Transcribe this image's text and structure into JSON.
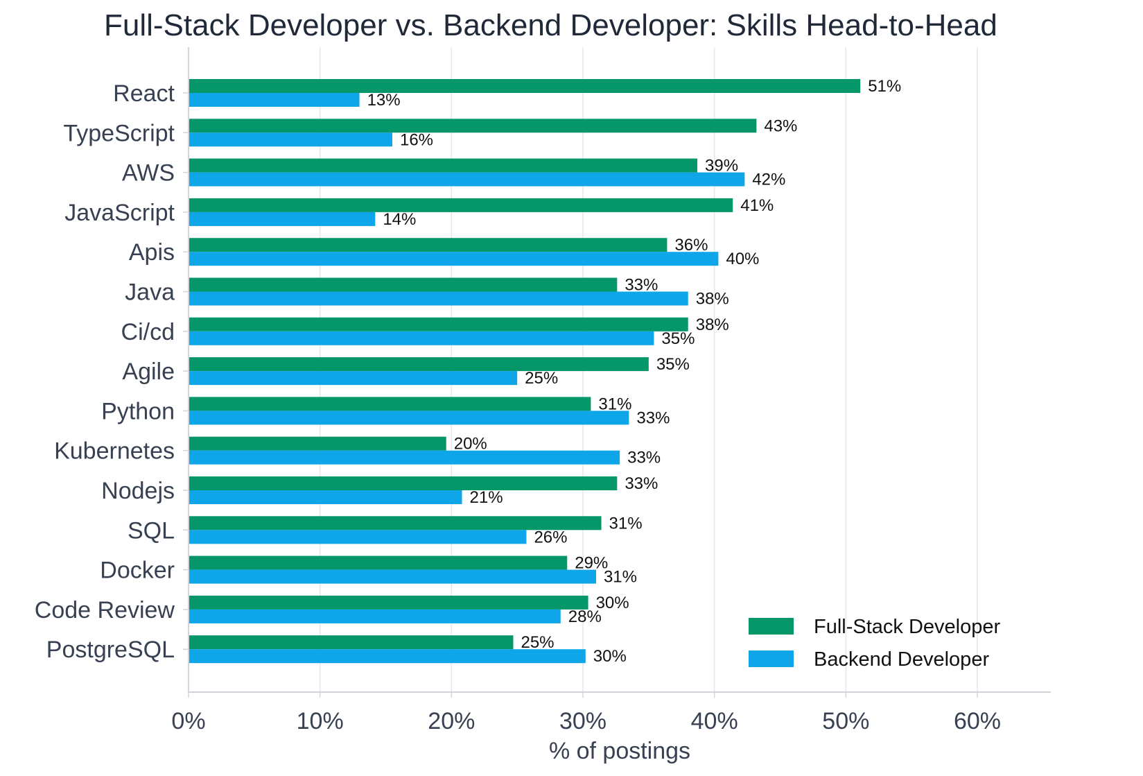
{
  "chart_data": {
    "type": "bar",
    "orientation": "horizontal",
    "title": "Full-Stack Developer vs. Backend Developer: Skills Head-to-Head",
    "xlabel": "% of postings",
    "ylabel": "",
    "xlim": [
      0,
      62.5
    ],
    "xticks": [
      "0%",
      "10%",
      "20%",
      "30%",
      "40%",
      "50%",
      "60%"
    ],
    "grid": "vertical",
    "legend_position": "bottom-right",
    "categories": [
      "React",
      "TypeScript",
      "AWS",
      "JavaScript",
      "Apis",
      "Java",
      "Ci/cd",
      "Agile",
      "Python",
      "Kubernetes",
      "Nodejs",
      "SQL",
      "Docker",
      "Code Review",
      "PostgreSQL"
    ],
    "series": [
      {
        "name": "Full-Stack Developer",
        "color": "#059669",
        "values": [
          51.1,
          43.2,
          38.7,
          41.4,
          36.4,
          32.6,
          38.0,
          35.0,
          30.6,
          19.6,
          32.6,
          31.4,
          28.8,
          30.4,
          24.7
        ],
        "labels": [
          "51%",
          "43%",
          "39%",
          "41%",
          "36%",
          "33%",
          "38%",
          "35%",
          "31%",
          "20%",
          "33%",
          "31%",
          "29%",
          "30%",
          "25%"
        ]
      },
      {
        "name": "Backend Developer",
        "color": "#0ea5e9",
        "values": [
          13.0,
          15.5,
          42.3,
          14.2,
          40.3,
          38.0,
          35.4,
          25.0,
          33.5,
          32.8,
          20.8,
          25.7,
          31.0,
          28.3,
          30.2
        ],
        "labels": [
          "13%",
          "16%",
          "42%",
          "14%",
          "40%",
          "38%",
          "35%",
          "25%",
          "33%",
          "33%",
          "21%",
          "26%",
          "31%",
          "28%",
          "30%"
        ]
      }
    ]
  }
}
